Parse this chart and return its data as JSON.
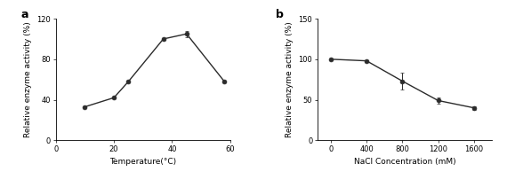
{
  "panel_a": {
    "x": [
      10,
      20,
      25,
      37,
      45,
      58
    ],
    "y": [
      33,
      42,
      58,
      100,
      105,
      58
    ],
    "yerr": [
      0.5,
      0.5,
      0.5,
      0.5,
      3,
      0.5
    ],
    "xlabel": "Temperature(°C)",
    "ylabel": "Relative enzyme activity (%)",
    "xlim": [
      0,
      60
    ],
    "ylim": [
      0,
      120
    ],
    "xticks": [
      0,
      20,
      40,
      60
    ],
    "yticks": [
      0,
      40,
      80,
      120
    ],
    "label": "a"
  },
  "panel_b": {
    "x": [
      0,
      400,
      800,
      1200,
      1600
    ],
    "y": [
      100,
      98,
      73,
      49,
      40
    ],
    "yerr": [
      1,
      1,
      10,
      4,
      2
    ],
    "xlabel": "NaCl Concentration (mM)",
    "ylabel": "Relative enzyme activity (%)",
    "xlim": [
      -150,
      1800
    ],
    "ylim": [
      0,
      150
    ],
    "xticks": [
      0,
      400,
      800,
      1200,
      1600
    ],
    "yticks": [
      0,
      50,
      100,
      150
    ],
    "label": "b"
  },
  "line_color": "#2b2b2b",
  "marker": "o",
  "markersize": 3.5,
  "linewidth": 1.0,
  "capsize": 1.5,
  "elinewidth": 0.7,
  "tick_fontsize": 6,
  "label_fontsize": 6.5,
  "panel_label_fontsize": 9
}
